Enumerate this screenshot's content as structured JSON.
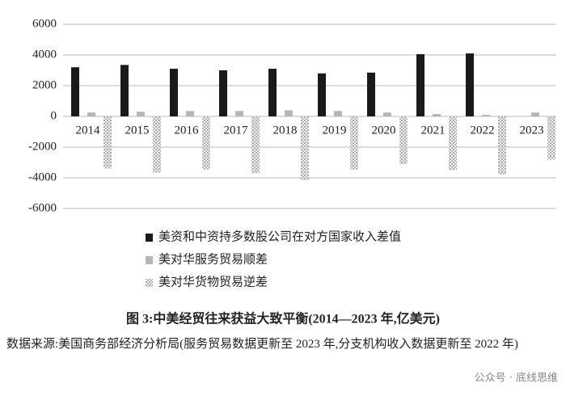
{
  "chart_data": {
    "type": "bar",
    "categories": [
      "2014",
      "2015",
      "2016",
      "2017",
      "2018",
      "2019",
      "2020",
      "2021",
      "2022",
      "2023"
    ],
    "series": [
      {
        "name": "美资和中资持多数股公司在对方国家收入差值",
        "color": "#1a1a1a",
        "values": [
          3200,
          3350,
          3100,
          3000,
          3100,
          2800,
          2850,
          4050,
          4100,
          null
        ]
      },
      {
        "name": "美对华服务贸易顺差",
        "color": "#b5b5b5",
        "values": [
          250,
          300,
          350,
          350,
          400,
          350,
          250,
          150,
          100,
          250
        ]
      },
      {
        "name": "美对华货物贸易逆差",
        "color": "#9a9a9a",
        "pattern": "dots",
        "values": [
          -3400,
          -3650,
          -3450,
          -3700,
          -4150,
          -3450,
          -3100,
          -3500,
          -3800,
          -2800
        ]
      }
    ],
    "ylim": [
      -6000,
      6000
    ],
    "yticks": [
      -6000,
      -4000,
      -2000,
      0,
      2000,
      4000,
      6000
    ],
    "grid": true,
    "caption": "图 3:中美经贸往来获益大致平衡(2014—2023 年,亿美元)",
    "source": "数据来源:美国商务部经济分析局(服务贸易数据更新至 2023 年,分支机构收入数据更新至 2022 年)",
    "watermark": "公众号 · 底线思维"
  }
}
